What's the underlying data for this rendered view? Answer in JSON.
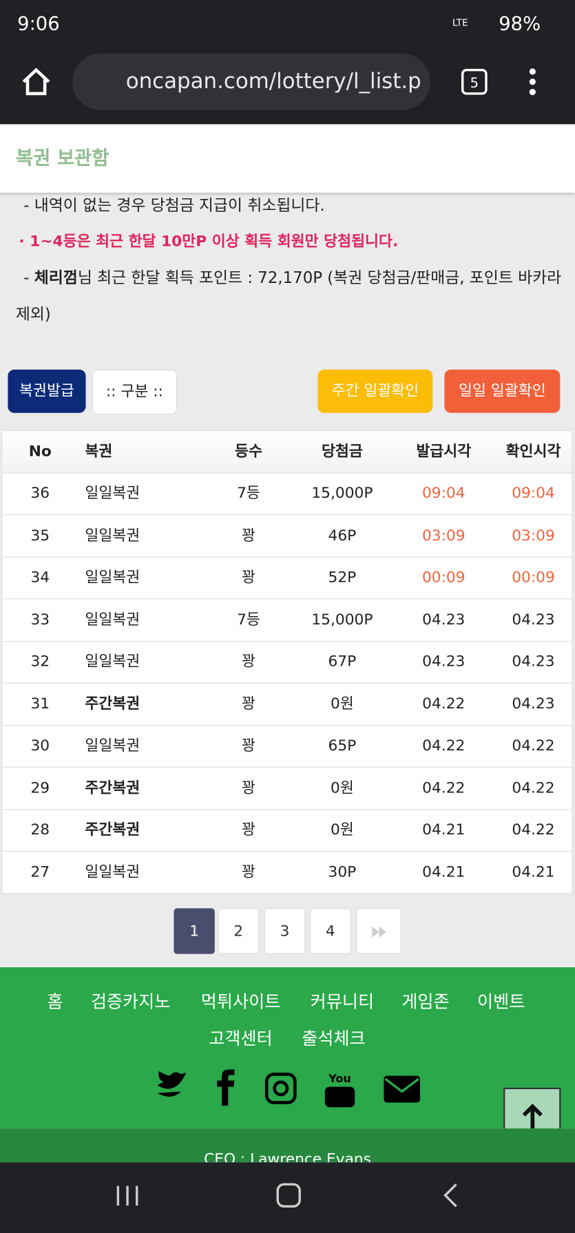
{
  "status_bar": {
    "time": "9:06",
    "network": "LTE",
    "battery": "98%"
  },
  "browser": {
    "url": "oncapan.com/lottery/l_list.p",
    "tabs": "5"
  },
  "header": {
    "title": "복권 보관함"
  },
  "notices": {
    "line1": "- 내역이 없는 경우 당첨금 지급이 취소됩니다.",
    "line2": "· 1~4등은 최근 한달 10만P 이상 획득 회원만 당첨됩니다.",
    "line3_name": "체리껌",
    "line3_text": "님 최근 한달 획득 포인트 : 72,170P (복권 당첨금/판매금, 포인트 바카라 제외)"
  },
  "buttons": {
    "issue": "복권발급",
    "filter": ":: 구분 ::",
    "weekly": "주간 일괄확인",
    "daily": "일일 일괄확인"
  },
  "table": {
    "headers": [
      "No",
      "복권",
      "등수",
      "당첨금",
      "발급시각",
      "확인시각"
    ],
    "rows": [
      [
        "36",
        "일일복권",
        "7등",
        "15,000P",
        "09:04",
        "09:04"
      ],
      [
        "35",
        "일일복권",
        "꽝",
        "46P",
        "03:09",
        "03:09"
      ],
      [
        "34",
        "일일복권",
        "꽝",
        "52P",
        "00:09",
        "00:09"
      ],
      [
        "33",
        "일일복권",
        "7등",
        "15,000P",
        "04.23",
        "04.23"
      ],
      [
        "32",
        "일일복권",
        "꽝",
        "67P",
        "04.23",
        "04.23"
      ],
      [
        "31",
        "주간복권",
        "꽝",
        "0원",
        "04.22",
        "04.23"
      ],
      [
        "30",
        "일일복권",
        "꽝",
        "65P",
        "04.22",
        "04.22"
      ],
      [
        "29",
        "주간복권",
        "꽝",
        "0원",
        "04.22",
        "04.22"
      ],
      [
        "28",
        "주간복권",
        "꽝",
        "0원",
        "04.21",
        "04.22"
      ],
      [
        "27",
        "일일복권",
        "꽝",
        "30P",
        "04.21",
        "04.21"
      ]
    ]
  },
  "pagination": [
    "1",
    "2",
    "3",
    "4"
  ],
  "footer": {
    "menu": [
      "홈",
      "검증카지노",
      "먹튀사이트",
      "커뮤니티",
      "게임존",
      "이벤트",
      "고객센터",
      "출석체크"
    ],
    "ceo": "CEO : Lawrence Evans"
  }
}
